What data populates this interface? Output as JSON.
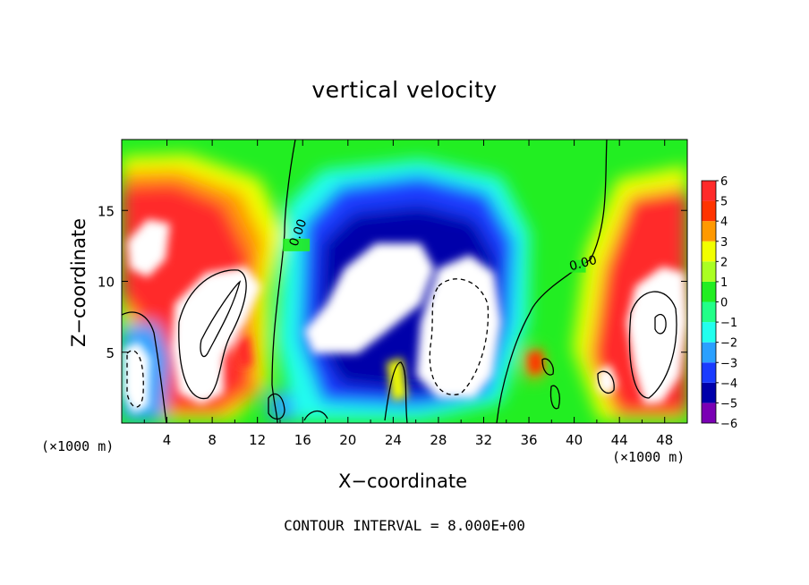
{
  "colors": {
    "plus6": "#f08080",
    "plus5": "#ff2a2a",
    "plus4": "#ff3300",
    "plus3": "#ff9900",
    "plus2": "#f2ff00",
    "plus1": "#aaff22",
    "zero": "#22ee22",
    "minus1": "#22ff88",
    "minus2": "#22ffee",
    "minus3": "#2aa0ff",
    "minus4": "#1a3cff",
    "minus5": "#0000aa",
    "minus6": "#7a00b4",
    "saturated": "#ffffff",
    "contour": "#000000"
  },
  "chart_data": {
    "type": "heatmap",
    "title": "vertical velocity",
    "xlabel": "X−coordinate",
    "ylabel": "Z−coordinate",
    "x_unit_left": "(×1000 m)",
    "x_unit_right": "(×1000 m)",
    "xlim": [
      0,
      50
    ],
    "ylim": [
      0,
      20
    ],
    "x_ticks": [
      4,
      8,
      12,
      16,
      20,
      24,
      28,
      32,
      36,
      40,
      44,
      48
    ],
    "y_ticks": [
      5,
      10,
      15
    ],
    "colorbar": {
      "ticks": [
        "6",
        "5",
        "4",
        "3",
        "2",
        "1",
        "0",
        "−1",
        "−2",
        "−3",
        "−4",
        "−5",
        "−6"
      ],
      "range": [
        -6,
        6
      ]
    },
    "contour_labels": [
      {
        "text": "0.00",
        "x": 15.2,
        "y": 12.5
      },
      {
        "text": "0.00",
        "x": 39.6,
        "y": 11.0
      }
    ],
    "contour_interval_text": "CONTOUR INTERVAL = 8.000E+00",
    "features": [
      {
        "name": "updraft-left",
        "x": 7,
        "z": 8,
        "value": 6
      },
      {
        "name": "updraft-topleft",
        "x": 3,
        "z": 12.5,
        "value": 6
      },
      {
        "name": "downdraft-left",
        "x": 1.5,
        "z": 3,
        "value": -6
      },
      {
        "name": "downdraft-center",
        "x": 24,
        "z": 10,
        "value": -6
      },
      {
        "name": "updraft-right",
        "x": 46,
        "z": 6,
        "value": 6
      }
    ]
  }
}
